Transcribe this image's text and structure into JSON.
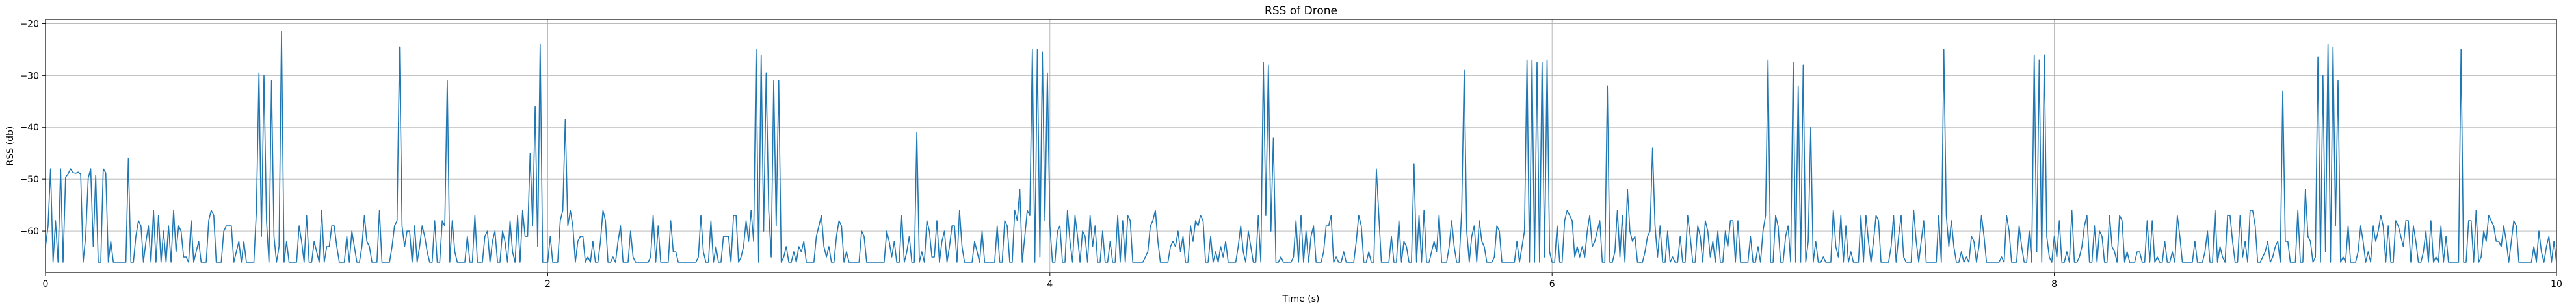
{
  "chart_data": {
    "type": "line",
    "title": "RSS of Drone",
    "xlabel": "Time (s)",
    "ylabel": "RSS (db)",
    "xlim": [
      0,
      10
    ],
    "ylim": [
      -68,
      -19.2
    ],
    "x_ticks": [
      0,
      2,
      4,
      6,
      8,
      10
    ],
    "y_ticks": [
      -20,
      -30,
      -40,
      -50,
      -60
    ],
    "x_tick_labels": [
      "0",
      "2",
      "4",
      "6",
      "8",
      "10"
    ],
    "y_tick_labels": [
      "−20",
      "−30",
      "−40",
      "−50",
      "−60"
    ],
    "grid": true,
    "legend": "none",
    "series": [
      {
        "color": "#1f77b4",
        "sample_interval": 0.01,
        "baseline": -66,
        "noise_range": [
          -66,
          -56
        ],
        "peaks": [
          {
            "t": 0.02,
            "v": -48
          },
          {
            "t": 0.06,
            "v": -48
          },
          {
            "t": 0.1,
            "v": -48
          },
          {
            "t": 0.14,
            "v": -49
          },
          {
            "t": 0.18,
            "v": -48
          },
          {
            "t": 0.23,
            "v": -48
          },
          {
            "t": 0.33,
            "v": -46
          },
          {
            "t": 0.85,
            "v": -29.5
          },
          {
            "t": 0.87,
            "v": -30
          },
          {
            "t": 0.9,
            "v": -31
          },
          {
            "t": 0.94,
            "v": -21.5
          },
          {
            "t": 1.41,
            "v": -24.5
          },
          {
            "t": 1.6,
            "v": -31
          },
          {
            "t": 1.93,
            "v": -45
          },
          {
            "t": 1.95,
            "v": -36
          },
          {
            "t": 1.97,
            "v": -24
          },
          {
            "t": 2.07,
            "v": -38.5
          },
          {
            "t": 2.83,
            "v": -25
          },
          {
            "t": 2.85,
            "v": -26
          },
          {
            "t": 2.87,
            "v": -29.5
          },
          {
            "t": 2.9,
            "v": -31
          },
          {
            "t": 2.92,
            "v": -31
          },
          {
            "t": 3.47,
            "v": -41
          },
          {
            "t": 3.88,
            "v": -52
          },
          {
            "t": 3.93,
            "v": -25
          },
          {
            "t": 3.95,
            "v": -25
          },
          {
            "t": 3.97,
            "v": -25.5
          },
          {
            "t": 3.99,
            "v": -29.5
          },
          {
            "t": 4.85,
            "v": -27.5
          },
          {
            "t": 4.87,
            "v": -28
          },
          {
            "t": 4.89,
            "v": -42
          },
          {
            "t": 5.3,
            "v": -48
          },
          {
            "t": 5.45,
            "v": -47
          },
          {
            "t": 5.65,
            "v": -29
          },
          {
            "t": 5.9,
            "v": -27
          },
          {
            "t": 5.92,
            "v": -27
          },
          {
            "t": 5.94,
            "v": -27.5
          },
          {
            "t": 5.96,
            "v": -27.5
          },
          {
            "t": 5.98,
            "v": -27
          },
          {
            "t": 6.22,
            "v": -32
          },
          {
            "t": 6.3,
            "v": -52
          },
          {
            "t": 6.4,
            "v": -44
          },
          {
            "t": 6.86,
            "v": -27
          },
          {
            "t": 6.96,
            "v": -27.5
          },
          {
            "t": 6.98,
            "v": -32
          },
          {
            "t": 7.0,
            "v": -28
          },
          {
            "t": 7.03,
            "v": -40
          },
          {
            "t": 7.56,
            "v": -25
          },
          {
            "t": 7.92,
            "v": -26
          },
          {
            "t": 7.94,
            "v": -27
          },
          {
            "t": 7.96,
            "v": -26
          },
          {
            "t": 8.91,
            "v": -33
          },
          {
            "t": 9.0,
            "v": -52
          },
          {
            "t": 9.05,
            "v": -26.5
          },
          {
            "t": 9.07,
            "v": -30
          },
          {
            "t": 9.09,
            "v": -24
          },
          {
            "t": 9.11,
            "v": -24.5
          },
          {
            "t": 9.13,
            "v": -31
          },
          {
            "t": 9.62,
            "v": -25
          }
        ]
      }
    ]
  }
}
